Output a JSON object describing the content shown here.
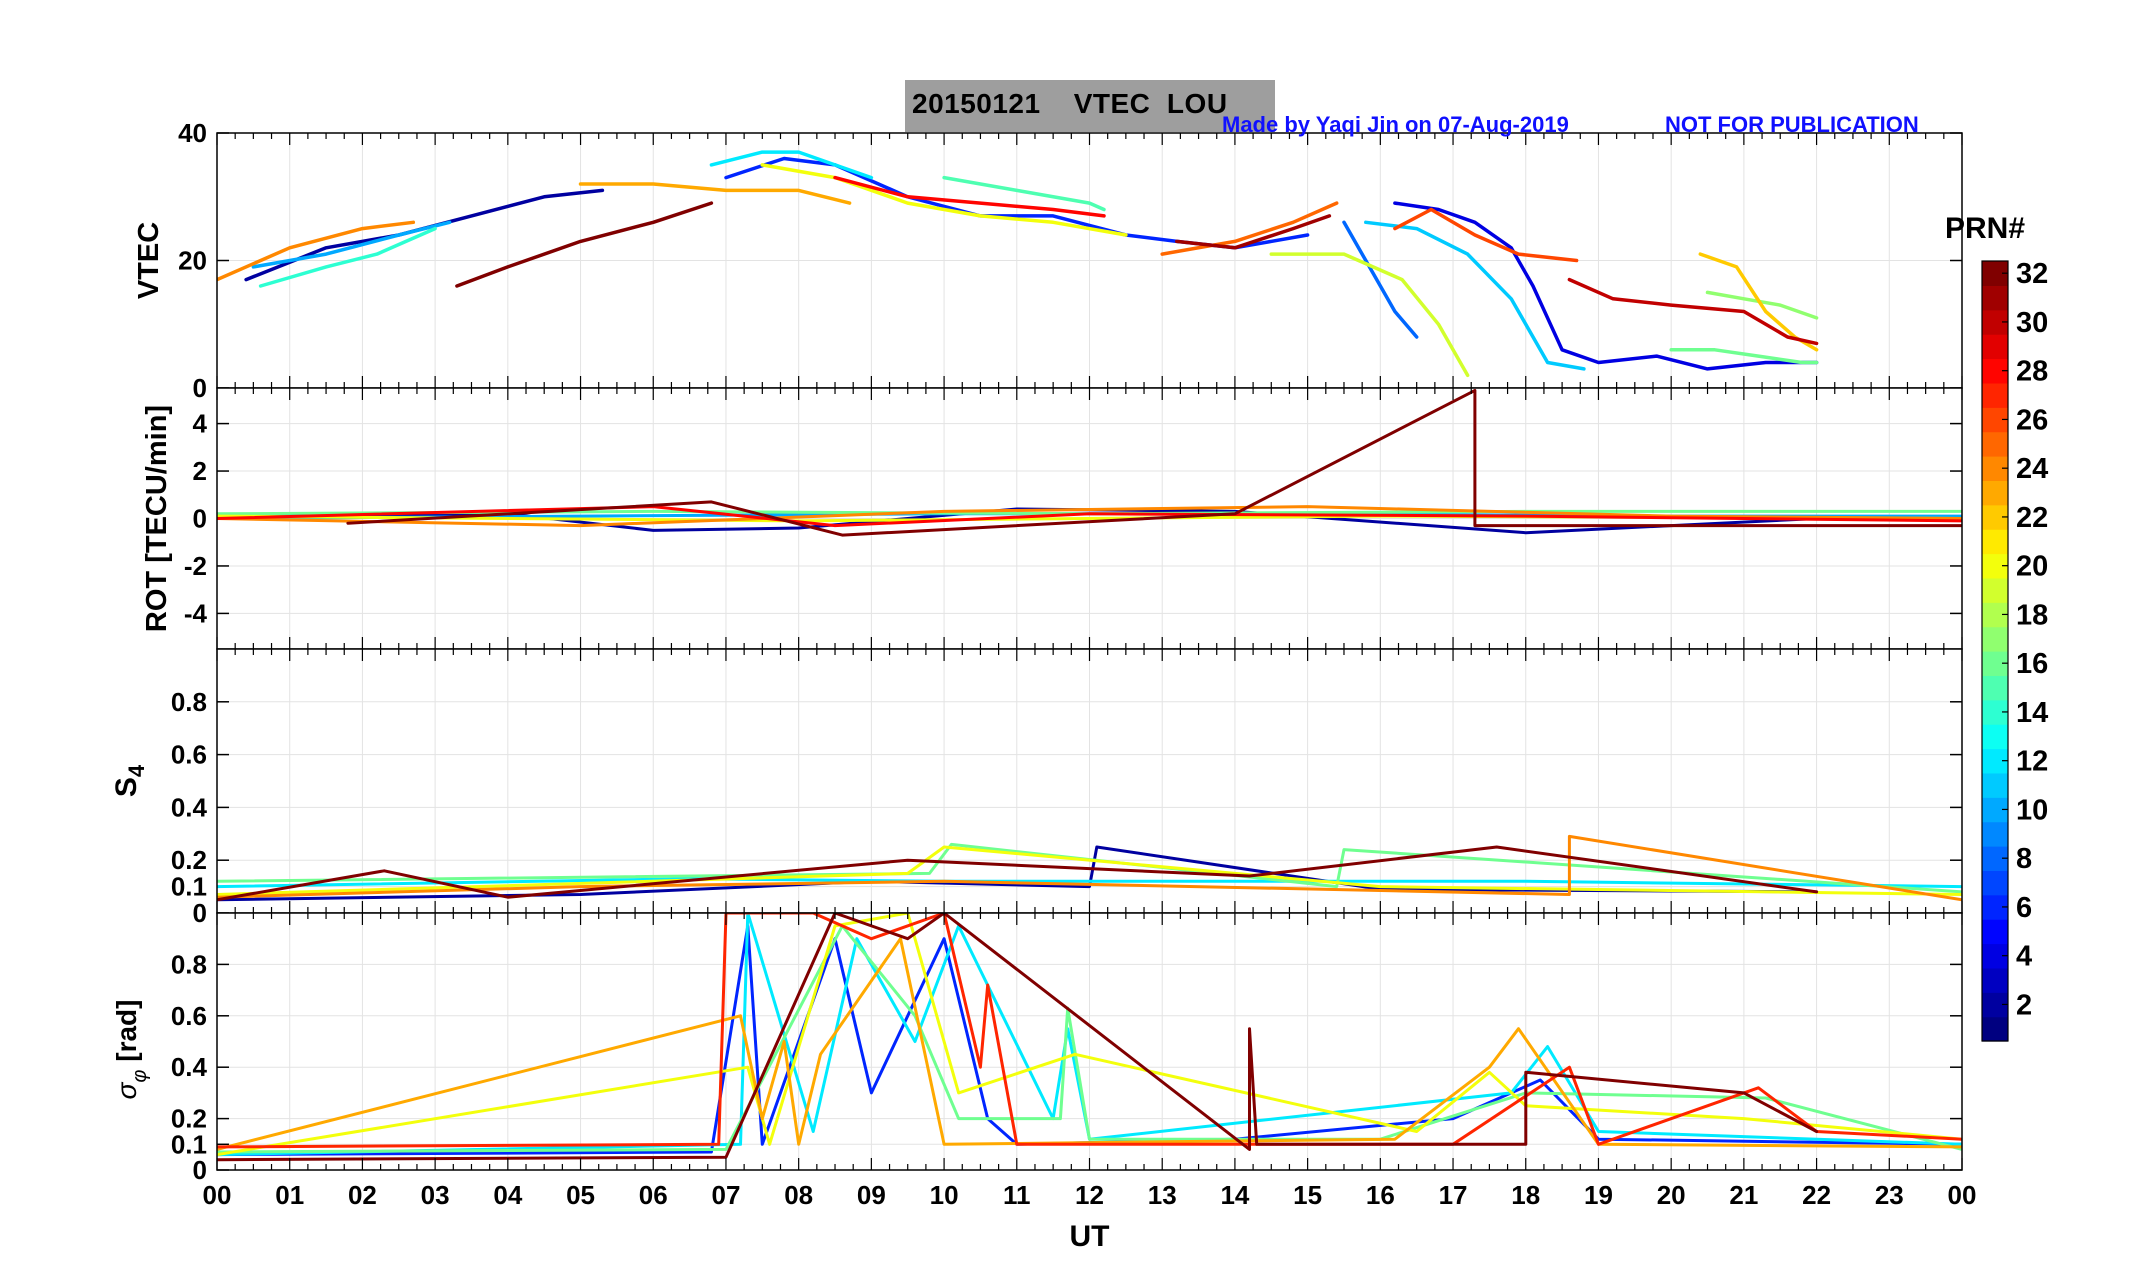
{
  "header": {
    "title": "20150121    VTEC  LOU",
    "credit": "Made by Yaqi Jin on 07-Aug-2019",
    "notice": "NOT FOR PUBLICATION"
  },
  "colorbar": {
    "label": "PRN#",
    "ticks": [
      "2",
      "4",
      "6",
      "8",
      "10",
      "12",
      "14",
      "16",
      "18",
      "20",
      "22",
      "24",
      "26",
      "28",
      "30",
      "32"
    ],
    "range": [
      1,
      32
    ],
    "colors": [
      "#00008f",
      "#0000ff",
      "#0080ff",
      "#00ffff",
      "#80ff80",
      "#ffff00",
      "#ff8000",
      "#ff0000",
      "#800000"
    ]
  },
  "chart_data": [
    {
      "type": "line",
      "title": "VTEC",
      "ylabel": "VTEC",
      "ylim": [
        0,
        40
      ],
      "yticks": [
        "0",
        "20",
        "40"
      ],
      "series": [
        {
          "name": "PRN 2",
          "prn": 2,
          "x": [
            0.4,
            1.5,
            2.5,
            3.5,
            4.5,
            5.3
          ],
          "y": [
            17,
            22,
            24,
            27,
            30,
            31
          ]
        },
        {
          "name": "PRN 4",
          "prn": 4,
          "x": [
            16.2,
            16.8,
            17.3,
            17.8,
            18.1,
            18.5,
            19.0,
            19.8,
            20.5,
            21.3,
            22.0
          ],
          "y": [
            29,
            28,
            26,
            22,
            16,
            6,
            4,
            5,
            3,
            4,
            4
          ]
        },
        {
          "name": "PRN 6",
          "prn": 6,
          "x": [
            7.0,
            7.8,
            8.5,
            9.5,
            10.5,
            11.5,
            12.5,
            13.2,
            14.0,
            15.0
          ],
          "y": [
            33,
            36,
            35,
            30,
            27,
            27,
            24,
            23,
            22,
            24
          ]
        },
        {
          "name": "PRN 8",
          "prn": 8,
          "x": [
            15.5,
            15.9,
            16.2,
            16.5
          ],
          "y": [
            26,
            18,
            12,
            8
          ]
        },
        {
          "name": "PRN 10",
          "prn": 10,
          "x": [
            0.5,
            1.5,
            2.5,
            3.2
          ],
          "y": [
            19,
            21,
            24,
            26
          ]
        },
        {
          "name": "PRN 11",
          "prn": 11,
          "x": [
            15.8,
            16.5,
            17.2,
            17.8,
            18.3,
            18.8
          ],
          "y": [
            26,
            25,
            21,
            14,
            4,
            3
          ]
        },
        {
          "name": "PRN 12",
          "prn": 12,
          "x": [
            6.8,
            7.5,
            8.0,
            8.5,
            9.0
          ],
          "y": [
            35,
            37,
            37,
            35,
            33
          ]
        },
        {
          "name": "PRN 14",
          "prn": 14,
          "x": [
            0.6,
            1.5,
            2.2,
            3.0
          ],
          "y": [
            16,
            19,
            21,
            25
          ]
        },
        {
          "name": "PRN 15",
          "prn": 15,
          "x": [
            10.0,
            11.0,
            12.0,
            12.2
          ],
          "y": [
            33,
            31,
            29,
            28
          ]
        },
        {
          "name": "PRN 16",
          "prn": 16,
          "x": [
            20.0,
            20.6,
            21.2,
            21.8,
            22.0
          ],
          "y": [
            6,
            6,
            5,
            4,
            4
          ]
        },
        {
          "name": "PRN 17",
          "prn": 17,
          "x": [
            20.5,
            21.0,
            21.5,
            22.0
          ],
          "y": [
            15,
            14,
            13,
            11
          ]
        },
        {
          "name": "PRN 19",
          "prn": 19,
          "x": [
            14.5,
            15.5,
            16.3,
            16.8,
            17.2
          ],
          "y": [
            21,
            21,
            17,
            10,
            2
          ]
        },
        {
          "name": "PRN 20",
          "prn": 20,
          "x": [
            7.5,
            8.5,
            9.5,
            10.5,
            11.5,
            12.5
          ],
          "y": [
            35,
            33,
            29,
            27,
            26,
            24
          ]
        },
        {
          "name": "PRN 22",
          "prn": 22,
          "x": [
            20.4,
            20.9,
            21.3,
            21.7,
            22.0
          ],
          "y": [
            21,
            19,
            12,
            8,
            6
          ]
        },
        {
          "name": "PRN 23",
          "prn": 23,
          "x": [
            5.0,
            6.0,
            7.0,
            8.0,
            8.7
          ],
          "y": [
            32,
            32,
            31,
            31,
            29
          ]
        },
        {
          "name": "PRN 24",
          "prn": 24,
          "x": [
            0.0,
            1.0,
            2.0,
            2.7
          ],
          "y": [
            17,
            22,
            25,
            26
          ]
        },
        {
          "name": "PRN 25",
          "prn": 25,
          "x": [
            13.0,
            14.0,
            14.8,
            15.4
          ],
          "y": [
            21,
            23,
            26,
            29
          ]
        },
        {
          "name": "PRN 26",
          "prn": 26,
          "x": [
            16.2,
            16.7,
            17.3,
            17.9,
            18.7
          ],
          "y": [
            25,
            28,
            24,
            21,
            20
          ]
        },
        {
          "name": "PRN 28",
          "prn": 28,
          "x": [
            8.5,
            9.5,
            10.5,
            11.5,
            12.2
          ],
          "y": [
            33,
            30,
            29,
            28,
            27
          ]
        },
        {
          "name": "PRN 30",
          "prn": 30,
          "x": [
            18.6,
            19.2,
            20.0,
            21.0,
            21.6,
            22.0
          ],
          "y": [
            17,
            14,
            13,
            12,
            8,
            7
          ]
        },
        {
          "name": "PRN 31",
          "prn": 31,
          "x": [
            13.2,
            14.0,
            14.8,
            15.3
          ],
          "y": [
            23,
            22,
            25,
            27
          ]
        },
        {
          "name": "PRN 32",
          "prn": 32,
          "x": [
            3.3,
            4.0,
            5.0,
            6.0,
            6.8
          ],
          "y": [
            16,
            19,
            23,
            26,
            29
          ]
        }
      ]
    },
    {
      "type": "line",
      "title": "ROT",
      "ylabel": "ROT [TECU/min]",
      "ylim": [
        -5.5,
        5.5
      ],
      "yticks": [
        "-4",
        "-2",
        "0",
        "2",
        "4"
      ],
      "series": [
        {
          "name": "PRN 2",
          "prn": 2,
          "x": [
            0.0,
            4.0,
            6.0,
            8.0,
            11.0,
            14.0,
            18.0,
            22.0
          ],
          "y": [
            0.1,
            0.2,
            -0.5,
            -0.4,
            0.4,
            0.3,
            -0.6,
            0.0
          ]
        },
        {
          "name": "PRN 10",
          "prn": 10,
          "x": [
            0.0,
            5.0,
            10.0,
            15.0,
            20.0,
            24.0
          ],
          "y": [
            0.0,
            0.1,
            0.2,
            0.2,
            0.1,
            0.1
          ]
        },
        {
          "name": "PRN 16",
          "prn": 16,
          "x": [
            0.0,
            6.0,
            12.0,
            18.0,
            24.0
          ],
          "y": [
            0.2,
            0.3,
            0.2,
            0.3,
            0.3
          ]
        },
        {
          "name": "PRN 20",
          "prn": 20,
          "x": [
            0.0,
            8.0,
            16.0,
            24.0
          ],
          "y": [
            0.1,
            -0.1,
            0.1,
            0.0
          ]
        },
        {
          "name": "PRN 24",
          "prn": 24,
          "x": [
            0.0,
            5.0,
            10.0,
            15.0,
            20.0,
            24.0
          ],
          "y": [
            0.0,
            -0.3,
            0.3,
            0.5,
            0.1,
            0.0
          ]
        },
        {
          "name": "PRN 28",
          "prn": 28,
          "x": [
            0.0,
            6.0,
            8.5,
            12.0,
            18.0,
            24.0
          ],
          "y": [
            0.0,
            0.5,
            -0.3,
            0.2,
            0.1,
            -0.1
          ]
        },
        {
          "name": "PRN 32",
          "prn": 32,
          "x": [
            1.8,
            6.8,
            8.6,
            14.0,
            17.3,
            17.3,
            24.0
          ],
          "y": [
            -0.2,
            0.7,
            -0.7,
            0.2,
            5.4,
            -0.3,
            -0.3
          ]
        }
      ]
    },
    {
      "type": "line",
      "title": "S4",
      "ylabel": "S4",
      "ylim": [
        0,
        1
      ],
      "yticks": [
        "0",
        "0.1",
        "0.2",
        "0.4",
        "0.6",
        "0.8"
      ],
      "series": [
        {
          "name": "PRN 2",
          "prn": 2,
          "x": [
            0.0,
            5.0,
            9.0,
            12.0,
            12.1,
            16.0,
            22.0
          ],
          "y": [
            0.05,
            0.07,
            0.12,
            0.1,
            0.25,
            0.09,
            0.08
          ]
        },
        {
          "name": "PRN 12",
          "prn": 12,
          "x": [
            0.0,
            6.5,
            10.0,
            18.0,
            24.0
          ],
          "y": [
            0.1,
            0.13,
            0.12,
            0.12,
            0.1
          ]
        },
        {
          "name": "PRN 16",
          "prn": 16,
          "x": [
            0.0,
            9.8,
            10.1,
            15.4,
            15.5,
            24.0
          ],
          "y": [
            0.12,
            0.15,
            0.26,
            0.1,
            0.24,
            0.08
          ]
        },
        {
          "name": "PRN 20",
          "prn": 20,
          "x": [
            0.0,
            9.5,
            10.0,
            16.0,
            24.0
          ],
          "y": [
            0.07,
            0.15,
            0.25,
            0.1,
            0.07
          ]
        },
        {
          "name": "PRN 24",
          "prn": 24,
          "x": [
            0.0,
            5.0,
            10.0,
            18.6,
            18.6,
            24.0
          ],
          "y": [
            0.06,
            0.1,
            0.12,
            0.07,
            0.29,
            0.05
          ]
        },
        {
          "name": "PRN 32",
          "prn": 32,
          "x": [
            0.0,
            2.3,
            4.0,
            9.5,
            14.2,
            17.6,
            22.0
          ],
          "y": [
            0.05,
            0.16,
            0.06,
            0.2,
            0.14,
            0.25,
            0.08
          ]
        }
      ]
    },
    {
      "type": "line",
      "title": "sigma phi",
      "ylabel": "σ_φ [rad]",
      "xlabel": "UT",
      "ylim": [
        0,
        1
      ],
      "yticks": [
        "0",
        "0.1",
        "0.2",
        "0.4",
        "0.6",
        "0.8"
      ],
      "xticks": [
        "00",
        "01",
        "02",
        "03",
        "04",
        "05",
        "06",
        "07",
        "08",
        "09",
        "10",
        "11",
        "12",
        "13",
        "14",
        "15",
        "16",
        "17",
        "18",
        "19",
        "20",
        "21",
        "22",
        "23",
        "00"
      ],
      "xlim": [
        0,
        24
      ],
      "series": [
        {
          "name": "PRN 6",
          "prn": 6,
          "x": [
            0.0,
            6.8,
            7.3,
            7.5,
            8.5,
            9.0,
            10.0,
            10.6,
            11.0,
            14.0,
            17.0,
            18.2,
            19.0,
            24.0
          ],
          "y": [
            0.06,
            0.07,
            0.95,
            0.1,
            0.9,
            0.3,
            0.9,
            0.2,
            0.1,
            0.12,
            0.2,
            0.35,
            0.12,
            0.1
          ]
        },
        {
          "name": "PRN 12",
          "prn": 12,
          "x": [
            0.0,
            7.2,
            7.3,
            8.2,
            8.8,
            9.6,
            10.2,
            11.5,
            11.7,
            12.0,
            17.8,
            18.3,
            19.0,
            24.0
          ],
          "y": [
            0.06,
            0.1,
            1.0,
            0.15,
            0.9,
            0.5,
            0.95,
            0.2,
            0.55,
            0.12,
            0.3,
            0.48,
            0.15,
            0.1
          ]
        },
        {
          "name": "PRN 16",
          "prn": 16,
          "x": [
            0.0,
            7.0,
            8.6,
            9.6,
            10.2,
            11.6,
            11.7,
            12.0,
            16.0,
            18.0,
            21.3,
            24.0
          ],
          "y": [
            0.07,
            0.08,
            0.95,
            0.6,
            0.2,
            0.2,
            0.63,
            0.12,
            0.12,
            0.3,
            0.28,
            0.08
          ]
        },
        {
          "name": "PRN 20",
          "prn": 20,
          "x": [
            0.0,
            7.3,
            7.6,
            8.5,
            9.5,
            10.2,
            11.8,
            16.5,
            17.5,
            18.0,
            21.0,
            24.0
          ],
          "y": [
            0.06,
            0.4,
            0.1,
            0.95,
            1.0,
            0.3,
            0.45,
            0.15,
            0.38,
            0.25,
            0.2,
            0.12
          ]
        },
        {
          "name": "PRN 23",
          "prn": 23,
          "x": [
            0.0,
            7.2,
            7.5,
            7.8,
            8.0,
            8.3,
            9.4,
            10.0,
            16.2,
            17.5,
            17.9,
            19.0,
            24.0
          ],
          "y": [
            0.08,
            0.6,
            0.2,
            0.5,
            0.1,
            0.45,
            0.9,
            0.1,
            0.12,
            0.4,
            0.55,
            0.1,
            0.09
          ]
        },
        {
          "name": "PRN 27",
          "prn": 27,
          "x": [
            0.0,
            6.9,
            7.0,
            8.2,
            9.0,
            10.0,
            10.5,
            10.6,
            11.0,
            17.0,
            18.6,
            19.0,
            21.2,
            22.0,
            24.0
          ],
          "y": [
            0.09,
            0.1,
            1.0,
            1.0,
            0.9,
            1.0,
            0.4,
            0.72,
            0.1,
            0.1,
            0.4,
            0.1,
            0.32,
            0.15,
            0.12
          ]
        },
        {
          "name": "PRN 32",
          "prn": 32,
          "x": [
            0.0,
            7.0,
            8.5,
            9.5,
            10.0,
            14.2,
            14.2,
            14.3,
            18.0,
            18.0,
            21.0,
            22.0
          ],
          "y": [
            0.04,
            0.05,
            1.0,
            0.9,
            1.0,
            0.08,
            0.55,
            0.1,
            0.1,
            0.38,
            0.3,
            0.15
          ]
        }
      ]
    }
  ]
}
